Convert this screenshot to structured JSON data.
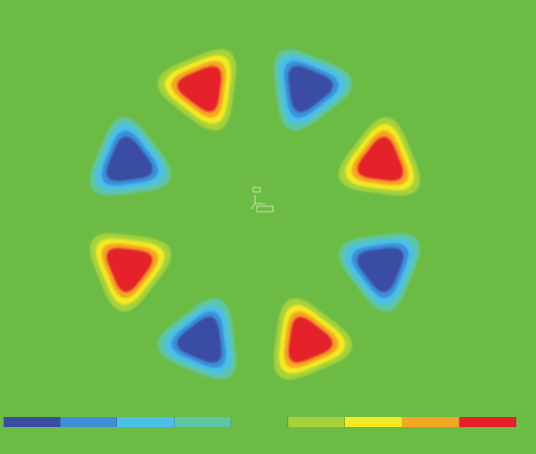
{
  "viewport": {
    "background_color": "#6cbb45",
    "top_left_text": "",
    "top_right_text_line1": "",
    "top_right_text_line2": ""
  },
  "plot": {
    "lobe_count": 8,
    "lobes": [
      {
        "id": "lobe-upper-left",
        "sign": "positive"
      },
      {
        "id": "lobe-upper-right",
        "sign": "negative"
      },
      {
        "id": "lobe-right-upper",
        "sign": "positive"
      },
      {
        "id": "lobe-right-lower",
        "sign": "negative"
      },
      {
        "id": "lobe-lower-right",
        "sign": "positive"
      },
      {
        "id": "lobe-lower-left",
        "sign": "negative"
      },
      {
        "id": "lobe-left-lower",
        "sign": "positive"
      },
      {
        "id": "lobe-left-upper",
        "sign": "negative"
      }
    ],
    "triad_icon": "coordinate-axes-icon"
  },
  "legend": {
    "colors": [
      "#3a4da3",
      "#3b8fd8",
      "#4cc0e8",
      "#5fc6a4",
      "#6cbb45",
      "#a6d23a",
      "#f2ea24",
      "#f5a623",
      "#e5202a"
    ],
    "labels": [
      "",
      "",
      "",
      "",
      "",
      "",
      "",
      "",
      ""
    ]
  },
  "palette": {
    "positive": [
      "#a6d23a",
      "#f2ea24",
      "#f5a623",
      "#e5202a"
    ],
    "negative": [
      "#5fc6a4",
      "#4cc0e8",
      "#3b8fd8",
      "#3a4da3"
    ],
    "triad": "#e8f2c8"
  }
}
